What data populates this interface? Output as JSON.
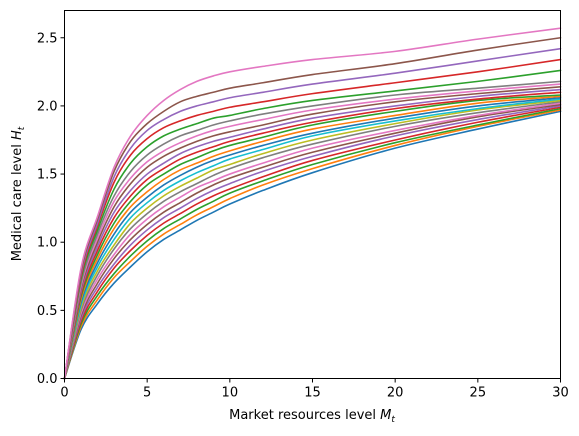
{
  "chart_data": {
    "type": "line",
    "title": "",
    "xlabel": "Market resources level ",
    "xlabel_symbol": "M",
    "xlabel_sub": "t",
    "ylabel": "Medical care level ",
    "ylabel_symbol": "H",
    "ylabel_sub": "t",
    "xlim": [
      0,
      30
    ],
    "ylim": [
      0,
      2.7
    ],
    "xticks": [
      0,
      5,
      10,
      15,
      20,
      25,
      30
    ],
    "xtick_labels": [
      "0",
      "5",
      "10",
      "15",
      "20",
      "25",
      "30"
    ],
    "yticks": [
      0.0,
      0.5,
      1.0,
      1.5,
      2.0,
      2.5
    ],
    "ytick_labels": [
      "0.0",
      "0.5",
      "1.0",
      "1.5",
      "2.0",
      "2.5"
    ],
    "grid": false,
    "legend": "none",
    "x": [
      0,
      1,
      2,
      3,
      4,
      5,
      6,
      7,
      8,
      9,
      10,
      12,
      15,
      20,
      25,
      30
    ],
    "series": [
      {
        "color": "#1f77b4",
        "values": [
          0.0,
          0.36,
          0.55,
          0.7,
          0.82,
          0.93,
          1.02,
          1.09,
          1.16,
          1.22,
          1.28,
          1.38,
          1.51,
          1.69,
          1.83,
          1.96
        ]
      },
      {
        "color": "#ff7f0e",
        "values": [
          0.0,
          0.38,
          0.58,
          0.74,
          0.86,
          0.97,
          1.06,
          1.13,
          1.2,
          1.26,
          1.32,
          1.42,
          1.54,
          1.71,
          1.85,
          1.97
        ]
      },
      {
        "color": "#2ca02c",
        "values": [
          0.0,
          0.4,
          0.61,
          0.77,
          0.9,
          1.01,
          1.1,
          1.17,
          1.24,
          1.3,
          1.36,
          1.45,
          1.57,
          1.73,
          1.86,
          1.98
        ]
      },
      {
        "color": "#d62728",
        "values": [
          0.0,
          0.42,
          0.64,
          0.81,
          0.94,
          1.05,
          1.14,
          1.21,
          1.28,
          1.34,
          1.39,
          1.48,
          1.6,
          1.75,
          1.88,
          1.99
        ]
      },
      {
        "color": "#9467bd",
        "values": [
          0.0,
          0.44,
          0.67,
          0.84,
          0.98,
          1.09,
          1.18,
          1.25,
          1.32,
          1.38,
          1.43,
          1.52,
          1.63,
          1.78,
          1.9,
          2.0
        ]
      },
      {
        "color": "#8c564b",
        "values": [
          0.0,
          0.46,
          0.7,
          0.88,
          1.02,
          1.13,
          1.22,
          1.29,
          1.36,
          1.42,
          1.47,
          1.55,
          1.66,
          1.8,
          1.92,
          2.01
        ]
      },
      {
        "color": "#e377c2",
        "values": [
          0.0,
          0.48,
          0.73,
          0.91,
          1.06,
          1.17,
          1.26,
          1.33,
          1.4,
          1.45,
          1.5,
          1.58,
          1.69,
          1.82,
          1.93,
          2.02
        ]
      },
      {
        "color": "#7f7f7f",
        "values": [
          0.0,
          0.5,
          0.76,
          0.95,
          1.1,
          1.21,
          1.3,
          1.37,
          1.43,
          1.49,
          1.54,
          1.62,
          1.72,
          1.85,
          1.95,
          2.03
        ]
      },
      {
        "color": "#bcbd22",
        "values": [
          0.0,
          0.52,
          0.79,
          0.98,
          1.14,
          1.25,
          1.34,
          1.41,
          1.47,
          1.53,
          1.57,
          1.65,
          1.75,
          1.87,
          1.97,
          2.04
        ]
      },
      {
        "color": "#17becf",
        "values": [
          0.0,
          0.54,
          0.82,
          1.02,
          1.18,
          1.29,
          1.38,
          1.45,
          1.51,
          1.56,
          1.61,
          1.68,
          1.78,
          1.89,
          1.98,
          2.05
        ]
      },
      {
        "color": "#1f77b4",
        "values": [
          0.0,
          0.56,
          0.85,
          1.06,
          1.22,
          1.33,
          1.42,
          1.49,
          1.55,
          1.6,
          1.64,
          1.71,
          1.8,
          1.91,
          2.0,
          2.06
        ]
      },
      {
        "color": "#ff7f0e",
        "values": [
          0.0,
          0.58,
          0.88,
          1.1,
          1.26,
          1.37,
          1.46,
          1.53,
          1.58,
          1.63,
          1.67,
          1.74,
          1.83,
          1.93,
          2.02,
          2.07
        ]
      },
      {
        "color": "#2ca02c",
        "values": [
          0.0,
          0.6,
          0.91,
          1.14,
          1.3,
          1.42,
          1.5,
          1.57,
          1.62,
          1.67,
          1.71,
          1.77,
          1.86,
          1.96,
          2.04,
          2.08
        ]
      },
      {
        "color": "#d62728",
        "values": [
          0.0,
          0.62,
          0.94,
          1.18,
          1.34,
          1.46,
          1.54,
          1.61,
          1.66,
          1.7,
          1.74,
          1.8,
          1.88,
          1.98,
          2.05,
          2.1
        ]
      },
      {
        "color": "#9467bd",
        "values": [
          0.0,
          0.64,
          0.97,
          1.22,
          1.38,
          1.5,
          1.58,
          1.65,
          1.7,
          1.74,
          1.77,
          1.83,
          1.91,
          2.0,
          2.07,
          2.12
        ]
      },
      {
        "color": "#8c564b",
        "values": [
          0.0,
          0.66,
          1.0,
          1.26,
          1.43,
          1.55,
          1.63,
          1.69,
          1.74,
          1.78,
          1.81,
          1.86,
          1.94,
          2.03,
          2.09,
          2.14
        ]
      },
      {
        "color": "#e377c2",
        "values": [
          0.0,
          0.68,
          1.03,
          1.3,
          1.47,
          1.59,
          1.67,
          1.73,
          1.78,
          1.82,
          1.85,
          1.9,
          1.97,
          2.05,
          2.11,
          2.16
        ]
      },
      {
        "color": "#7f7f7f",
        "values": [
          0.0,
          0.7,
          1.06,
          1.34,
          1.52,
          1.64,
          1.72,
          1.78,
          1.82,
          1.86,
          1.89,
          1.94,
          2.0,
          2.08,
          2.13,
          2.18
        ]
      },
      {
        "color": "#2ca02c",
        "values": [
          0.0,
          0.73,
          1.09,
          1.39,
          1.58,
          1.7,
          1.78,
          1.83,
          1.87,
          1.91,
          1.93,
          1.98,
          2.04,
          2.11,
          2.18,
          2.26
        ]
      },
      {
        "color": "#d62728",
        "values": [
          0.0,
          0.75,
          1.12,
          1.44,
          1.64,
          1.76,
          1.84,
          1.89,
          1.93,
          1.96,
          1.99,
          2.03,
          2.09,
          2.17,
          2.25,
          2.34
        ]
      },
      {
        "color": "#9467bd",
        "values": [
          0.0,
          0.77,
          1.14,
          1.48,
          1.69,
          1.82,
          1.9,
          1.96,
          2.0,
          2.03,
          2.06,
          2.1,
          2.16,
          2.24,
          2.33,
          2.42
        ]
      },
      {
        "color": "#8c564b",
        "values": [
          0.0,
          0.79,
          1.17,
          1.52,
          1.74,
          1.87,
          1.96,
          2.03,
          2.07,
          2.1,
          2.13,
          2.17,
          2.23,
          2.31,
          2.41,
          2.5
        ]
      },
      {
        "color": "#e377c2",
        "values": [
          0.0,
          0.81,
          1.19,
          1.55,
          1.78,
          1.93,
          2.04,
          2.12,
          2.18,
          2.22,
          2.25,
          2.29,
          2.34,
          2.4,
          2.49,
          2.57
        ]
      }
    ]
  }
}
